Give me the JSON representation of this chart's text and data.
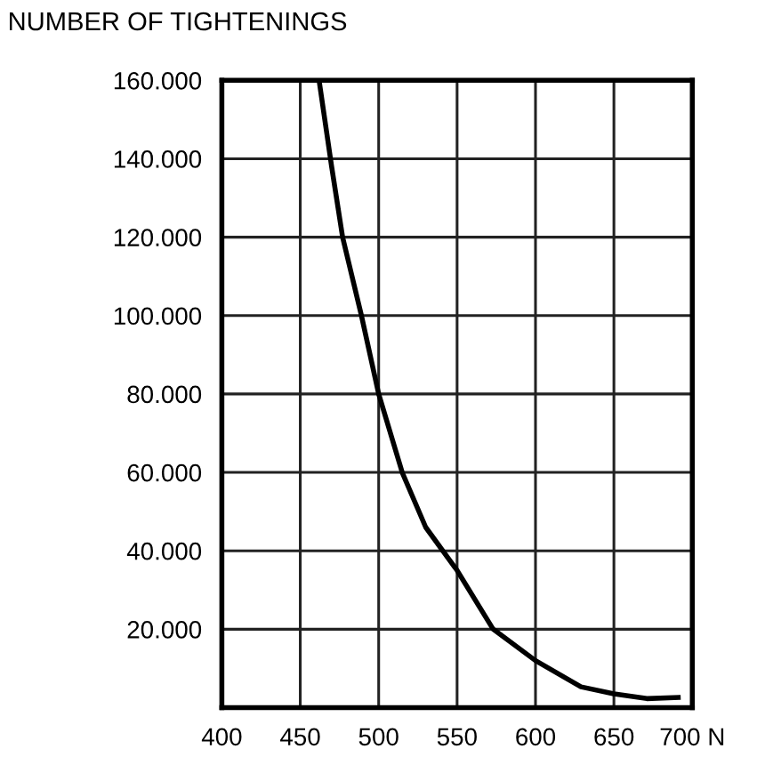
{
  "chart_data": {
    "type": "line",
    "title": "NUMBER OF TIGHTENINGS",
    "x": [
      462,
      470,
      477,
      489,
      500,
      515,
      530,
      550,
      573,
      600,
      629,
      650,
      671,
      691
    ],
    "series": [
      {
        "color": "#000000",
        "values": [
          160000,
          138000,
          120000,
          100000,
          80000,
          60000,
          46000,
          35000,
          20000,
          12000,
          5300,
          3500,
          2300,
          2600
        ]
      }
    ],
    "xlim": [
      400,
      700
    ],
    "xticks": [
      400,
      450,
      500,
      550,
      600,
      650,
      {
        "value": 700,
        "label": "700 N"
      }
    ],
    "ylim": [
      0,
      160000
    ],
    "yticks": [
      {
        "value": 0,
        "label": null
      },
      {
        "value": 20000,
        "label": "20.000"
      },
      {
        "value": 40000,
        "label": "40.000"
      },
      {
        "value": 60000,
        "label": "60.000"
      },
      {
        "value": 80000,
        "label": "80.000"
      },
      {
        "value": 100000,
        "label": "100.000"
      },
      {
        "value": 120000,
        "label": "120.000"
      },
      {
        "value": 140000,
        "label": "140.000"
      },
      {
        "value": 160000,
        "label": "160.000"
      }
    ],
    "grid": true,
    "marker": "none",
    "line_style": "solid"
  }
}
